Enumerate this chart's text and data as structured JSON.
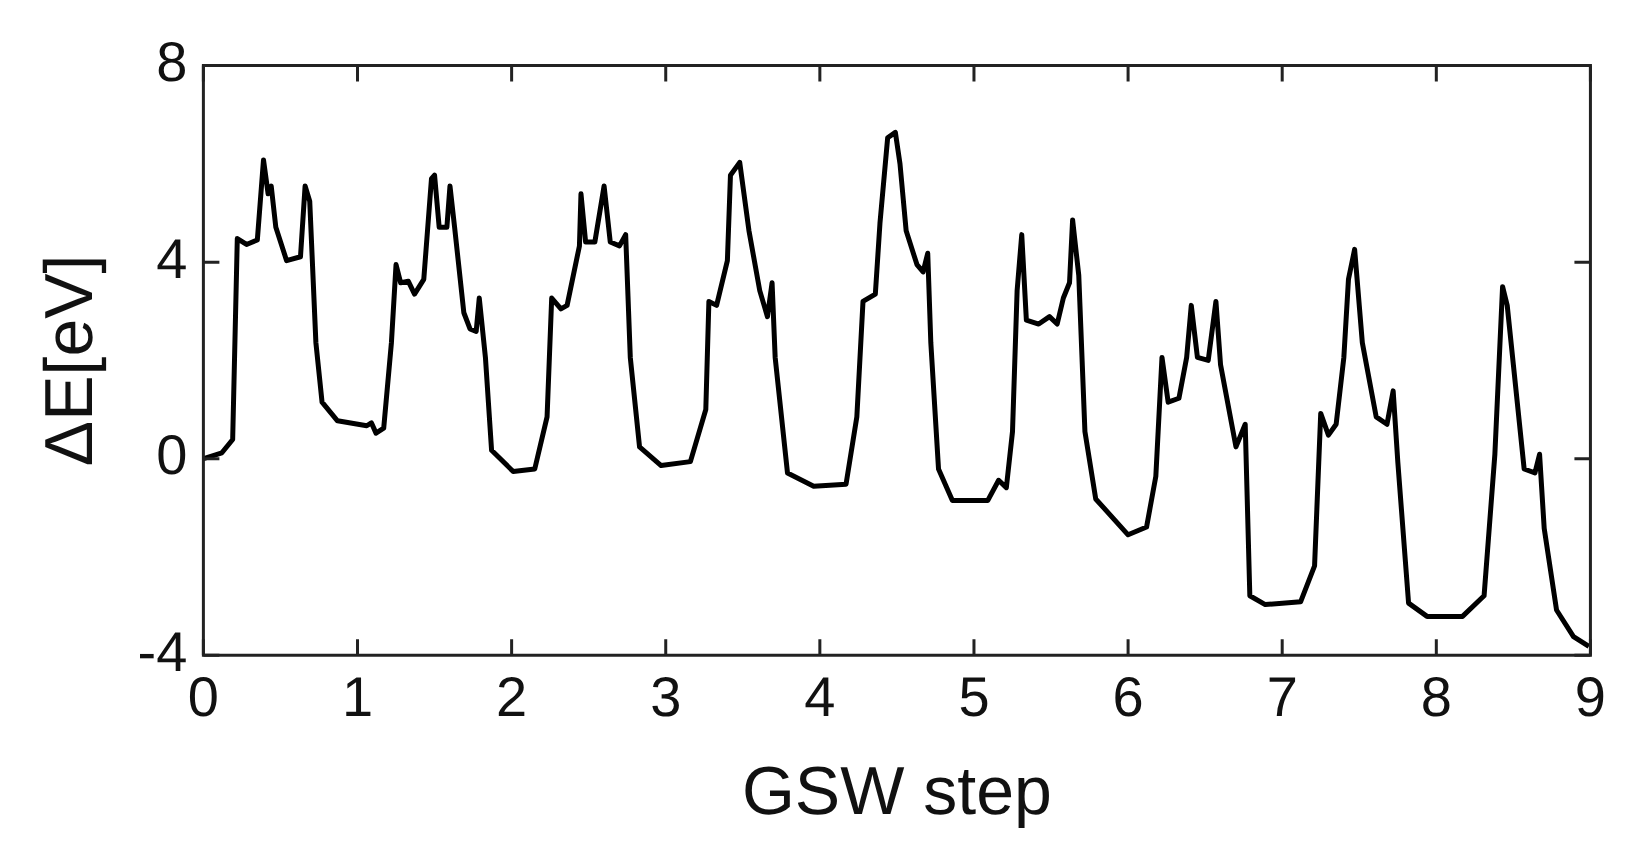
{
  "chart_data": {
    "type": "line",
    "xlabel": "GSW step",
    "ylabel": "ΔE[eV]",
    "xlim": [
      0,
      9
    ],
    "ylim": [
      -4,
      8
    ],
    "xticks": [
      0,
      1,
      2,
      3,
      4,
      5,
      6,
      7,
      8,
      9
    ],
    "yticks": [
      -4,
      0,
      4,
      8
    ],
    "grid": false,
    "legend": false,
    "marker": "none",
    "line_style": "solid",
    "series": [
      {
        "color": "#000000",
        "x": [
          0,
          0.12,
          0.19,
          0.22,
          0.28,
          0.35,
          0.39,
          0.42,
          0.44,
          0.47,
          0.54,
          0.63,
          0.66,
          0.69,
          0.73,
          0.77,
          0.87,
          1.06,
          1.09,
          1.12,
          1.17,
          1.22,
          1.25,
          1.28,
          1.33,
          1.37,
          1.43,
          1.48,
          1.5,
          1.53,
          1.58,
          1.6,
          1.63,
          1.69,
          1.73,
          1.77,
          1.79,
          1.83,
          1.87,
          2.01,
          2.15,
          2.23,
          2.26,
          2.32,
          2.36,
          2.44,
          2.45,
          2.48,
          2.54,
          2.6,
          2.64,
          2.7,
          2.74,
          2.77,
          2.83,
          2.97,
          3.16,
          3.26,
          3.28,
          3.33,
          3.4,
          3.42,
          3.48,
          3.54,
          3.61,
          3.66,
          3.69,
          3.71,
          3.79,
          3.96,
          4.17,
          4.24,
          4.28,
          4.36,
          4.39,
          4.44,
          4.49,
          4.52,
          4.56,
          4.63,
          4.67,
          4.7,
          4.72,
          4.77,
          4.86,
          5.09,
          5.16,
          5.21,
          5.25,
          5.28,
          5.31,
          5.34,
          5.42,
          5.49,
          5.54,
          5.58,
          5.62,
          5.64,
          5.68,
          5.72,
          5.79,
          6,
          6.12,
          6.18,
          6.22,
          6.26,
          6.33,
          6.38,
          6.41,
          6.45,
          6.52,
          6.57,
          6.6,
          6.7,
          6.76,
          6.79,
          6.89,
          7.12,
          7.21,
          7.25,
          7.3,
          7.35,
          7.4,
          7.43,
          7.47,
          7.52,
          7.61,
          7.68,
          7.72,
          7.75,
          7.82,
          7.94,
          8.17,
          8.31,
          8.38,
          8.43,
          8.46,
          8.5,
          8.57,
          8.64,
          8.67,
          8.7,
          8.78,
          8.89,
          8.99
        ],
        "values": [
          0,
          0.12,
          0.39,
          4.48,
          4.36,
          4.45,
          6.08,
          5.39,
          5.55,
          4.71,
          4.03,
          4.11,
          5.55,
          5.24,
          2.36,
          1.15,
          0.77,
          0.67,
          0.73,
          0.52,
          0.62,
          2.36,
          3.95,
          3.58,
          3.61,
          3.35,
          3.65,
          5.7,
          5.77,
          4.71,
          4.71,
          5.55,
          4.71,
          2.97,
          2.64,
          2.59,
          3.27,
          2.06,
          0.17,
          -0.26,
          -0.21,
          0.85,
          3.27,
          3.05,
          3.12,
          4.33,
          5.39,
          4.41,
          4.41,
          5.55,
          4.41,
          4.33,
          4.56,
          2.06,
          0.24,
          -0.14,
          -0.06,
          1,
          3.2,
          3.12,
          4.03,
          5.77,
          6.03,
          4.64,
          3.42,
          2.89,
          3.58,
          2.06,
          -0.29,
          -0.56,
          -0.52,
          0.85,
          3.2,
          3.35,
          4.79,
          6.53,
          6.64,
          6,
          4.64,
          3.95,
          3.8,
          4.18,
          2.36,
          -0.21,
          -0.85,
          -0.85,
          -0.44,
          -0.59,
          0.55,
          3.42,
          4.56,
          2.82,
          2.74,
          2.89,
          2.74,
          3.27,
          3.58,
          4.86,
          3.73,
          0.55,
          -0.82,
          -1.55,
          -1.39,
          -0.36,
          2.06,
          1.15,
          1.23,
          2.06,
          3.12,
          2.06,
          2,
          3.2,
          1.91,
          0.24,
          0.7,
          -2.79,
          -2.97,
          -2.91,
          -2.18,
          0.92,
          0.48,
          0.7,
          2.06,
          3.65,
          4.26,
          2.36,
          0.85,
          0.7,
          1.38,
          -0.06,
          -2.94,
          -3.21,
          -3.21,
          -2.79,
          0.09,
          3.5,
          3.12,
          1.91,
          -0.21,
          -0.29,
          0.09,
          -1.42,
          -3.08,
          -3.62,
          -3.82
        ]
      }
    ]
  }
}
